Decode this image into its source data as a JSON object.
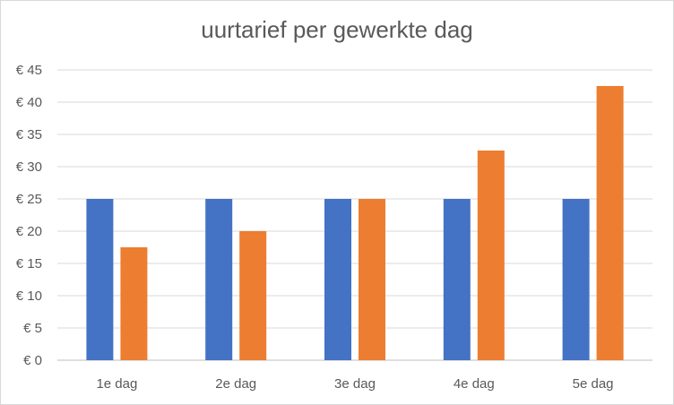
{
  "chart_data": {
    "type": "bar",
    "title": "uurtarief per gewerkte dag",
    "xlabel": "",
    "ylabel": "",
    "categories": [
      "1e dag",
      "2e dag",
      "3e dag",
      "4e dag",
      "5e dag"
    ],
    "series": [
      {
        "values": [
          25,
          25,
          25,
          25,
          25
        ],
        "color": "#4472c4"
      },
      {
        "values": [
          17.5,
          20,
          25,
          32.5,
          42.5
        ],
        "color": "#ed7d31"
      }
    ],
    "ylim": [
      0,
      45
    ],
    "yticks": [
      0,
      5,
      10,
      15,
      20,
      25,
      30,
      35,
      40,
      45
    ],
    "ytick_labels": [
      "€ 0",
      "€ 5",
      "€ 10",
      "€ 15",
      "€ 20",
      "€ 25",
      "€ 30",
      "€ 35",
      "€ 40",
      "€ 45"
    ],
    "grid": true,
    "legend": "none"
  }
}
